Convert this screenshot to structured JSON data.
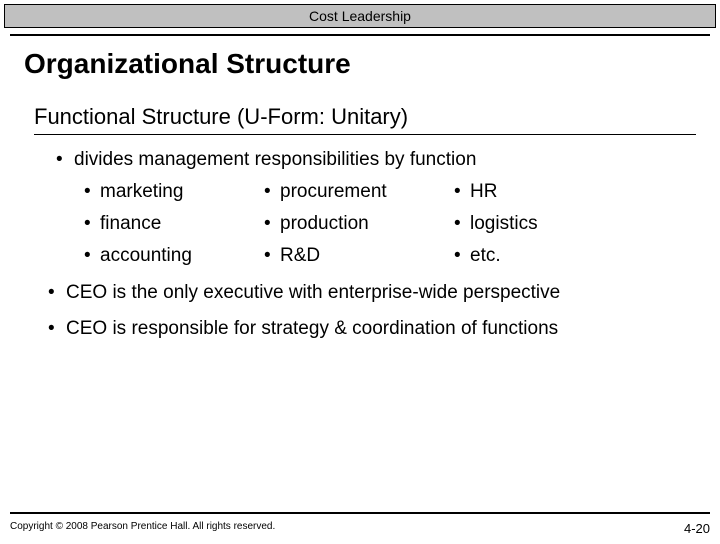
{
  "header": {
    "chapter": "Cost Leadership"
  },
  "title": "Organizational Structure",
  "subtitle": "Functional Structure (U-Form: Unitary)",
  "lead_bullet": "divides management responsibilities by function",
  "functions": {
    "col1": [
      "marketing",
      "finance",
      "accounting"
    ],
    "col2": [
      "procurement",
      "production",
      "R&D"
    ],
    "col3": [
      "HR",
      "logistics",
      "etc."
    ]
  },
  "paragraphs": [
    "CEO is the only executive with enterprise-wide perspective",
    "CEO is responsible for strategy & coordination of functions"
  ],
  "footer": {
    "copyright": "Copyright © 2008 Pearson Prentice Hall. All rights reserved.",
    "page": "4-20"
  },
  "style": {
    "header_bg": "#c0c0c0",
    "text_color": "#000000",
    "rule_color": "#000000"
  }
}
